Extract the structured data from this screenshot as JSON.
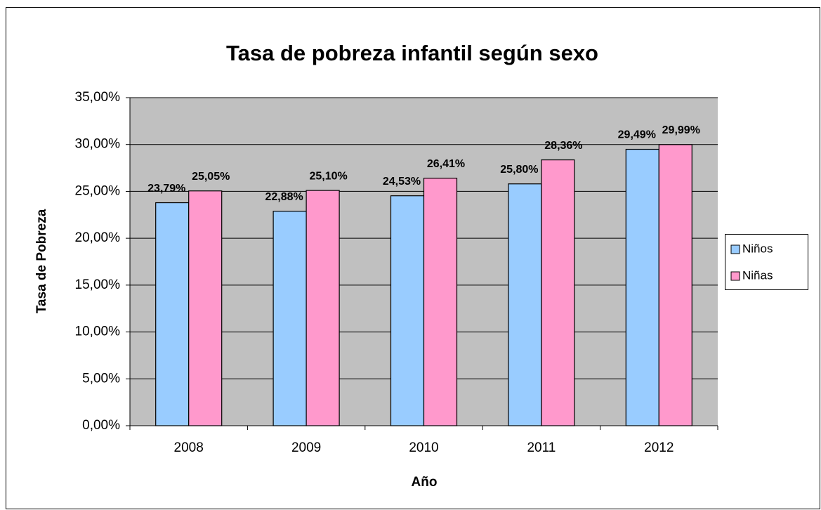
{
  "chart_data": {
    "type": "bar",
    "title": "Tasa de pobreza infantil según sexo",
    "x_label": "Año",
    "y_label": "Tasa de Pobreza",
    "categories": [
      "2008",
      "2009",
      "2010",
      "2011",
      "2012"
    ],
    "series": [
      {
        "name": "Niños",
        "color": "#99ccff",
        "values": [
          23.79,
          22.88,
          24.53,
          25.8,
          29.49
        ],
        "value_labels": [
          "23,79%",
          "22,88%",
          "24,53%",
          "25,80%",
          "29,49%"
        ]
      },
      {
        "name": "Niñas",
        "color": "#ff99cc",
        "values": [
          25.05,
          25.1,
          26.41,
          28.36,
          29.99
        ],
        "value_labels": [
          "25,05%",
          "25,10%",
          "26,41%",
          "28,36%",
          "29,99%"
        ]
      }
    ],
    "ylim": [
      0,
      35
    ],
    "yticks": [
      {
        "value": 0,
        "label": "0,00%"
      },
      {
        "value": 5,
        "label": "5,00%"
      },
      {
        "value": 10,
        "label": "10,00%"
      },
      {
        "value": 15,
        "label": "15,00%"
      },
      {
        "value": 20,
        "label": "20,00%"
      },
      {
        "value": 25,
        "label": "25,00%"
      },
      {
        "value": 30,
        "label": "30,00%"
      },
      {
        "value": 35,
        "label": "35,00%"
      }
    ],
    "grid": true,
    "legend": "right"
  }
}
